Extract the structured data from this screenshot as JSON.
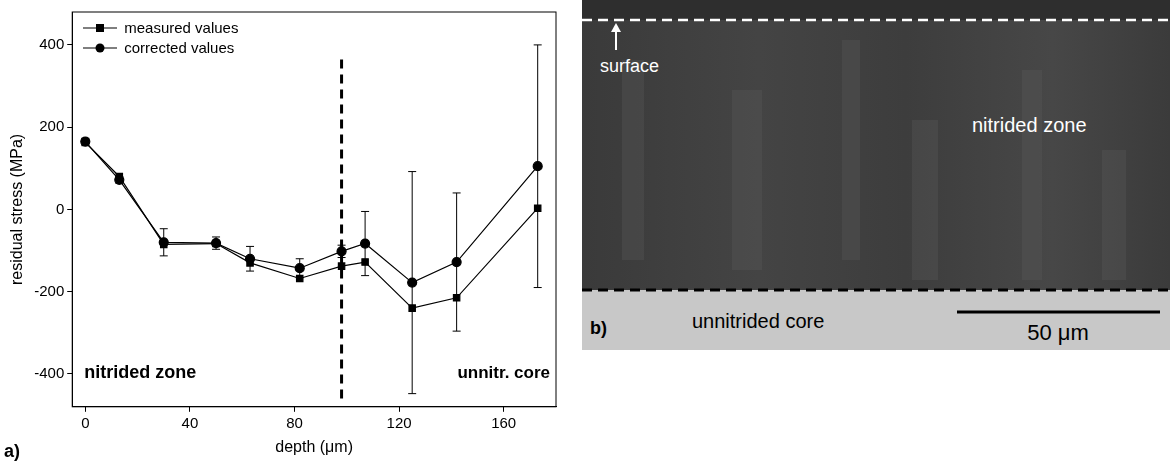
{
  "chart_data": {
    "type": "line",
    "panel_label": "a)",
    "x_label": "depth (μm)",
    "y_label": "residual stress (MPa)",
    "xlim": [
      -5,
      180
    ],
    "xticks": [
      0,
      40,
      80,
      120,
      160
    ],
    "ylim": [
      -480,
      480
    ],
    "yticks": [
      -400,
      -200,
      0,
      200,
      400
    ],
    "grid": false,
    "legend": "upper left",
    "annotations": [
      "nitrided zone",
      "unnitr. core"
    ],
    "zone_boundary": 98,
    "x": [
      0,
      13,
      30,
      50,
      63,
      82,
      98,
      107,
      125,
      142,
      173
    ],
    "series": [
      {
        "name": "measured values",
        "color": "#000000",
        "marker": "square",
        "line_style": "solid",
        "values": [
          163,
          80,
          -85,
          -83,
          -130,
          -168,
          -138,
          -128,
          -240,
          -215,
          3
        ]
      },
      {
        "name": "corrected values",
        "color": "#000000",
        "marker": "circle",
        "line_style": "solid",
        "values": [
          165,
          72,
          -80,
          -82,
          -120,
          -143,
          -102,
          -83,
          -178,
          -128,
          105
        ],
        "errors": [
          8,
          8,
          33,
          15,
          30,
          23,
          15,
          78,
          270,
          168,
          295
        ]
      }
    ]
  },
  "micrograph": {
    "panel_label": "b)",
    "labels": [
      "surface",
      "nitrided zone",
      "unnitrided core"
    ],
    "scale_bar": "50 μm"
  }
}
